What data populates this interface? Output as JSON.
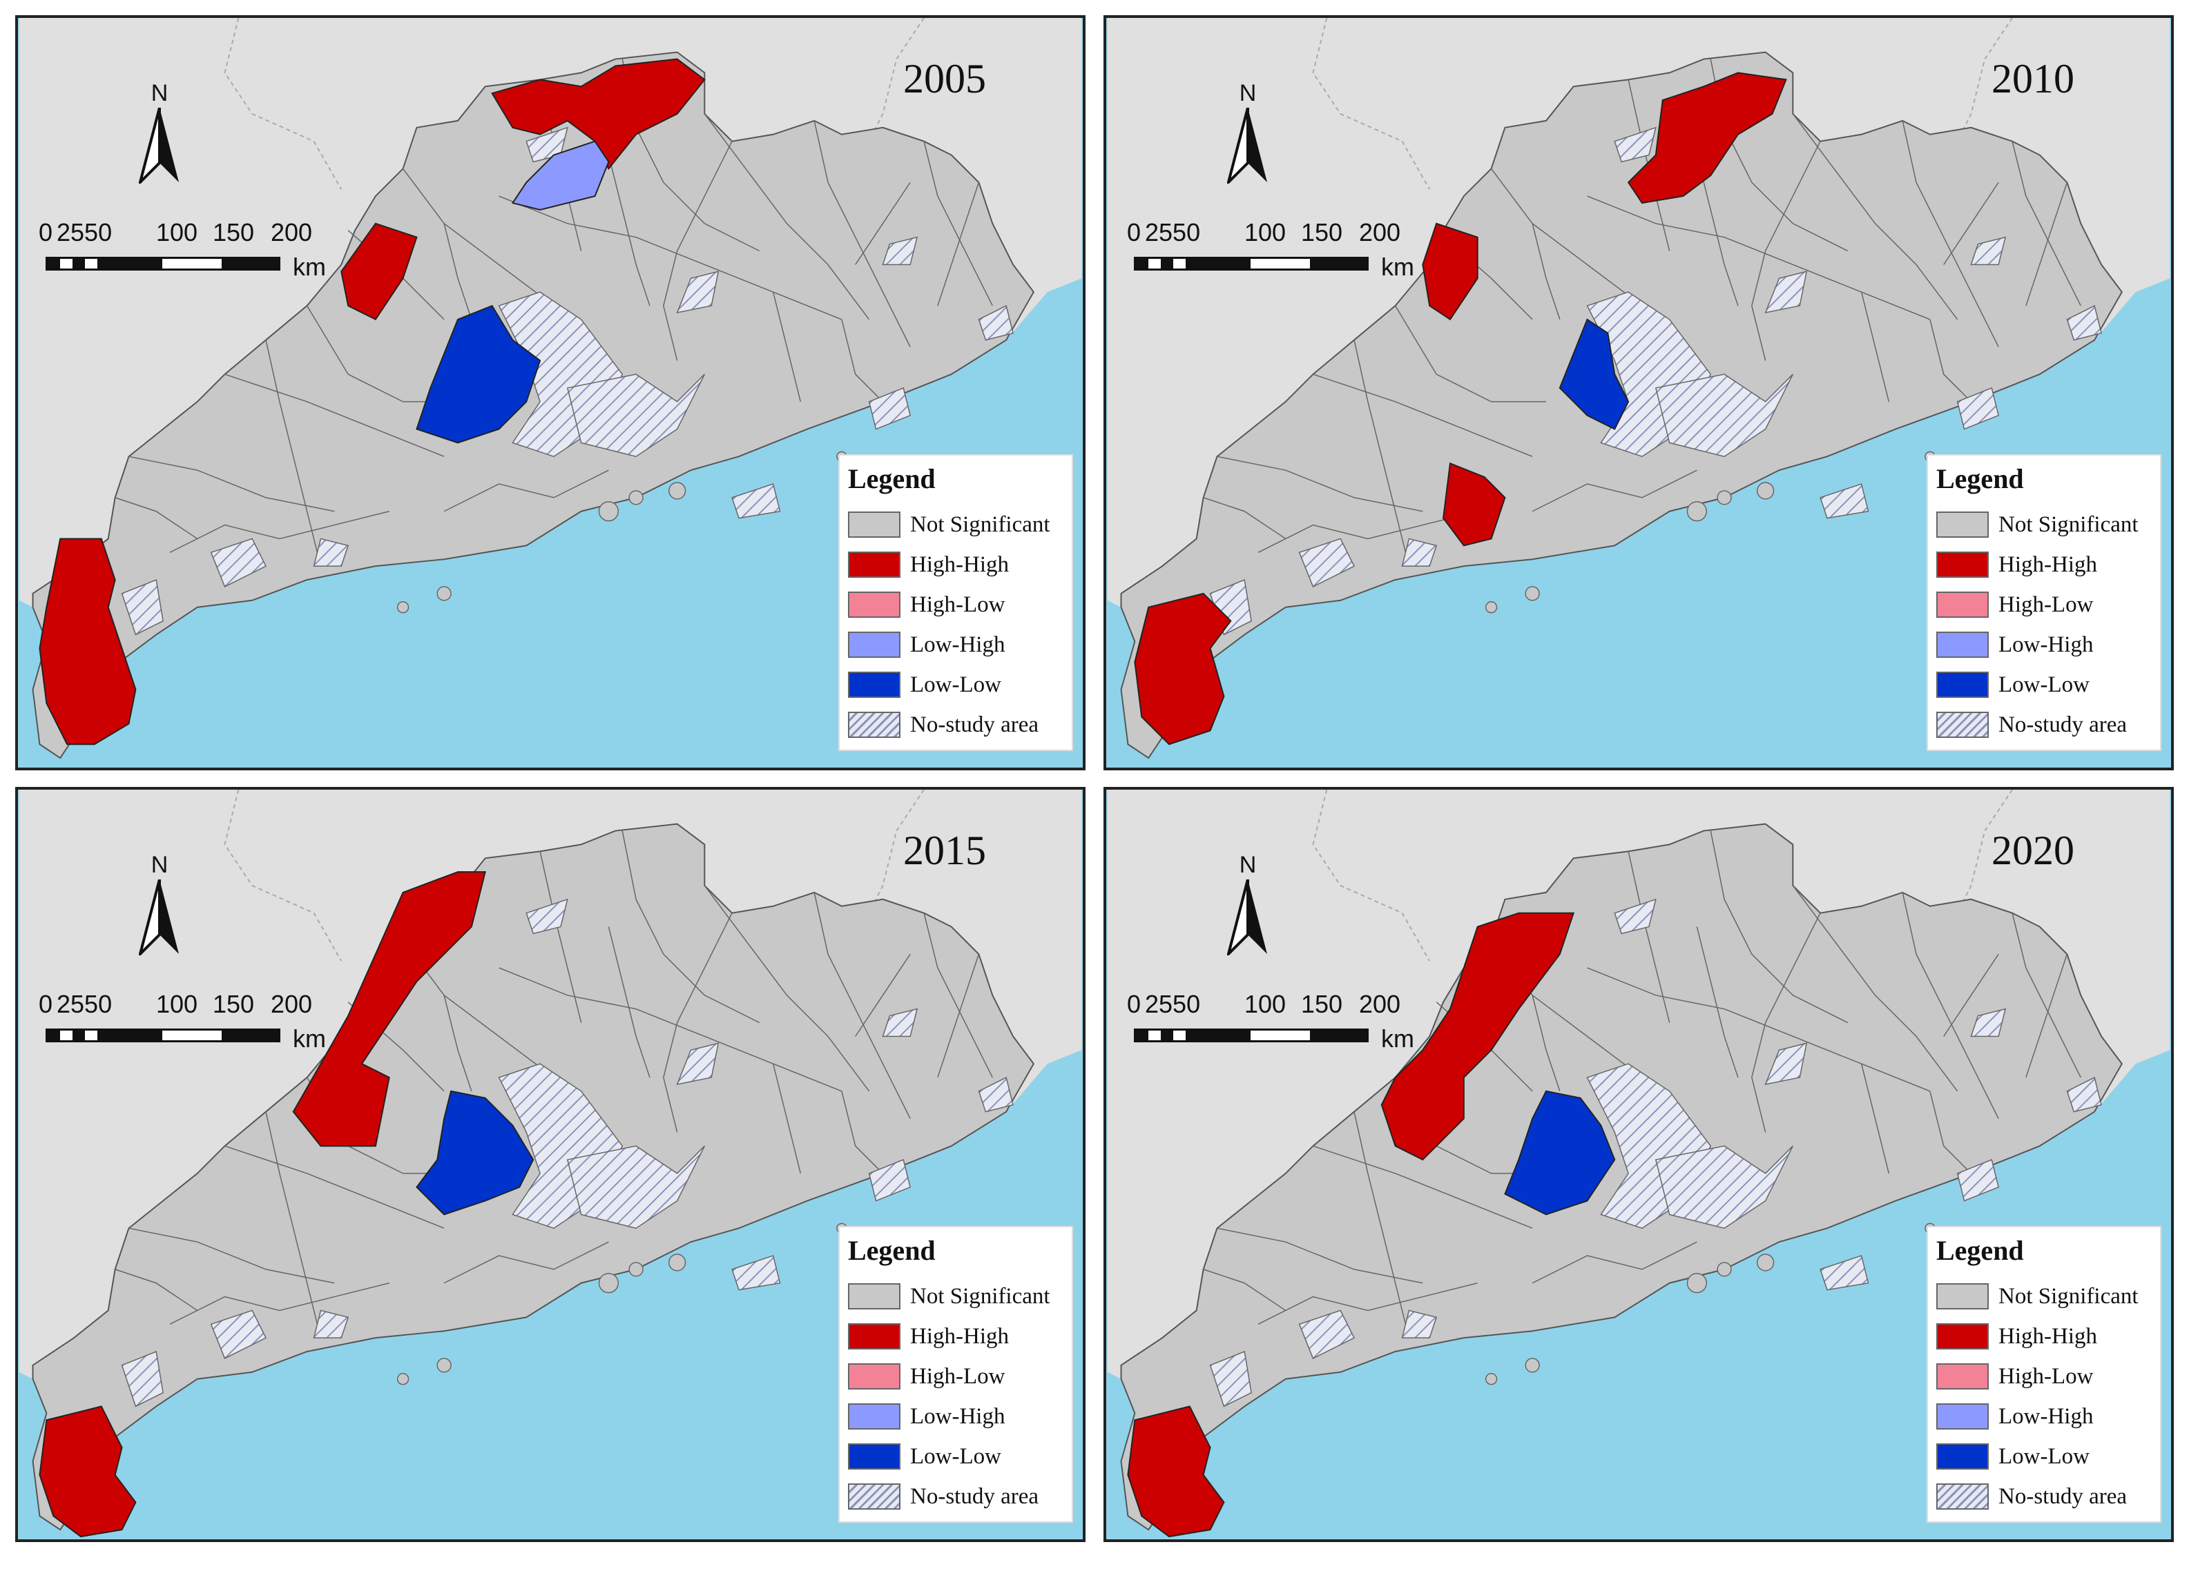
{
  "legend": {
    "title": "Legend",
    "items": [
      {
        "label": "Not Significant",
        "color": "#c8c8c8"
      },
      {
        "label": "High-High",
        "color": "#cc0000"
      },
      {
        "label": "High-Low",
        "color": "#f48297"
      },
      {
        "label": "Low-High",
        "color": "#8c9aff"
      },
      {
        "label": "Low-Low",
        "color": "#0033cc"
      },
      {
        "label": "No-study area",
        "color": "hatched"
      }
    ]
  },
  "scale_bar": {
    "ticks": [
      "0",
      "2550",
      "100",
      "150",
      "200"
    ],
    "unit": "km"
  },
  "north_label": "N",
  "colors": {
    "sea": "#8fd3ea",
    "outside_land": "#e0e0e0",
    "not_significant": "#c8c8c8",
    "high_high": "#cc0000",
    "low_high": "#8c9aff",
    "low_low": "#0033cc"
  },
  "panels": [
    {
      "year": "2005",
      "clusters": [
        "high_high",
        "low_high",
        "low_low"
      ]
    },
    {
      "year": "2010",
      "clusters": [
        "high_high",
        "low_low"
      ]
    },
    {
      "year": "2015",
      "clusters": [
        "high_high",
        "low_low"
      ]
    },
    {
      "year": "2020",
      "clusters": [
        "high_high",
        "low_low"
      ]
    }
  ]
}
